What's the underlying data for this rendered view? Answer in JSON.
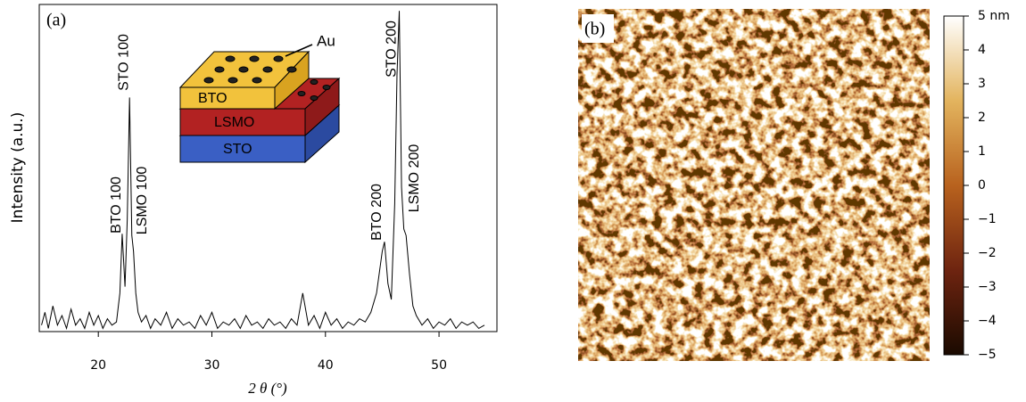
{
  "chart_data": [
    {
      "type": "line",
      "panel_label": "(a)",
      "xlabel": "2 θ (°)",
      "ylabel": "Intensity (a.u.)",
      "xlim": [
        14.8,
        55.1
      ],
      "xticks": [
        20,
        30,
        40,
        50
      ],
      "ylim": [
        0,
        102
      ],
      "color": "#000000",
      "x": [
        15.0,
        15.3,
        15.6,
        16.0,
        16.4,
        16.8,
        17.2,
        17.6,
        18.0,
        18.4,
        18.8,
        19.2,
        19.6,
        20.0,
        20.4,
        20.8,
        21.2,
        21.6,
        21.9,
        22.1,
        22.35,
        22.55,
        22.75,
        22.95,
        23.1,
        23.3,
        23.5,
        23.8,
        24.2,
        24.6,
        25.0,
        25.5,
        26.0,
        26.5,
        27.0,
        27.5,
        28.0,
        28.5,
        29.0,
        29.5,
        30.0,
        30.5,
        31.0,
        31.5,
        32.0,
        32.5,
        33.0,
        33.5,
        34.0,
        34.5,
        35.0,
        35.5,
        36.0,
        36.5,
        37.0,
        37.5,
        38.0,
        38.5,
        39.0,
        39.5,
        40.0,
        40.5,
        41.0,
        41.5,
        42.0,
        42.5,
        43.0,
        43.5,
        44.0,
        44.5,
        45.0,
        45.2,
        45.5,
        45.8,
        46.1,
        46.3,
        46.5,
        46.7,
        46.9,
        47.1,
        47.4,
        47.7,
        48.0,
        48.5,
        49.0,
        49.5,
        50.0,
        50.5,
        51.0,
        51.5,
        52.0,
        52.5,
        53.0,
        53.5,
        54.0
      ],
      "values": [
        2,
        6,
        1,
        8,
        2,
        5,
        1,
        7,
        2,
        4,
        1,
        6,
        2,
        5,
        1,
        4,
        2,
        3,
        12,
        30.5,
        14,
        35,
        73,
        30,
        25,
        12,
        6,
        3,
        5,
        1,
        4,
        2,
        6,
        1,
        4,
        2,
        3,
        1,
        5,
        2,
        6,
        1,
        3,
        2,
        4,
        1,
        5,
        2,
        3,
        1,
        4,
        2,
        3,
        1,
        4,
        2,
        12,
        2,
        5,
        1,
        6,
        2,
        4,
        1,
        3,
        2,
        4,
        3,
        6,
        12,
        25,
        28,
        15,
        10,
        40,
        80,
        100,
        45,
        32,
        30,
        18,
        8,
        5,
        2,
        4,
        1,
        3,
        2,
        4,
        1,
        3,
        2,
        3,
        1,
        2
      ],
      "peak_labels": [
        {
          "text": "BTO 100",
          "x": 22.1
        },
        {
          "text": "STO 100",
          "x": 22.75
        },
        {
          "text": "LSMO 100",
          "x": 23.1
        },
        {
          "text": "BTO 200",
          "x": 45.2
        },
        {
          "text": "STO 200",
          "x": 46.5
        },
        {
          "text": "LSMO 200",
          "x": 47.0
        }
      ],
      "inset_labels": [
        "Au",
        "BTO",
        "LSMO",
        "STO"
      ]
    },
    {
      "type": "heatmap",
      "panel_label": "(b)",
      "clim": [
        -5,
        5
      ],
      "cticks": [
        {
          "value": -5,
          "label": "−5"
        },
        {
          "value": -4,
          "label": "−4"
        },
        {
          "value": -3,
          "label": "−3"
        },
        {
          "value": -2,
          "label": "−2"
        },
        {
          "value": -1,
          "label": "−1"
        },
        0,
        1,
        2,
        3,
        4,
        {
          "value": 5,
          "label": "5 nm"
        }
      ]
    }
  ]
}
